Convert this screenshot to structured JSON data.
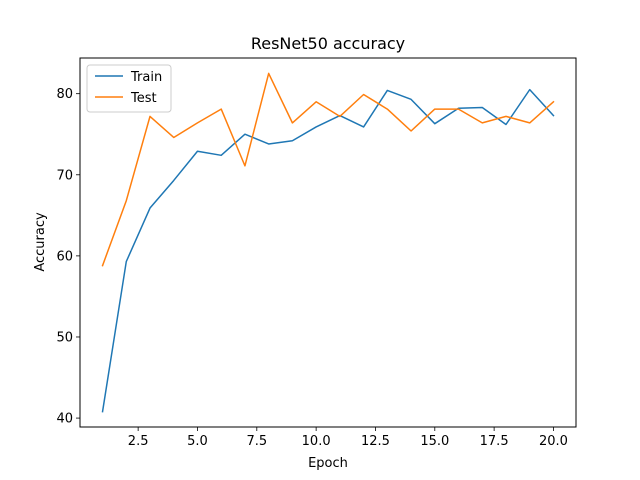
{
  "chart_data": {
    "type": "line",
    "title": "ResNet50 accuracy",
    "xlabel": "Epoch",
    "ylabel": "Accuracy",
    "x": [
      1,
      2,
      3,
      4,
      5,
      6,
      7,
      8,
      9,
      10,
      11,
      12,
      13,
      14,
      15,
      16,
      17,
      18,
      19,
      20
    ],
    "series": [
      {
        "name": "Train",
        "color": "#1f77b4",
        "values": [
          40.8,
          59.3,
          65.9,
          69.3,
          72.9,
          72.4,
          75.0,
          73.8,
          74.2,
          75.9,
          77.3,
          75.9,
          80.4,
          79.3,
          76.3,
          78.2,
          78.3,
          76.2,
          80.5,
          77.3
        ]
      },
      {
        "name": "Test",
        "color": "#ff7f0e",
        "values": [
          58.8,
          66.8,
          77.2,
          74.6,
          76.4,
          78.1,
          71.1,
          82.5,
          76.4,
          79.0,
          77.2,
          79.9,
          78.1,
          75.4,
          78.1,
          78.1,
          76.4,
          77.2,
          76.4,
          79.0
        ]
      }
    ],
    "xlim": [
      0.05,
      20.95
    ],
    "ylim": [
      38.9,
      84.4
    ],
    "xticks": [
      2.5,
      5.0,
      7.5,
      10.0,
      12.5,
      15.0,
      17.5,
      20.0
    ],
    "xtick_labels": [
      "2.5",
      "5.0",
      "7.5",
      "10.0",
      "12.5",
      "15.0",
      "17.5",
      "20.0"
    ],
    "yticks": [
      40,
      50,
      60,
      70,
      80
    ],
    "ytick_labels": [
      "40",
      "50",
      "60",
      "70",
      "80"
    ],
    "grid": false,
    "legend_position": "upper left"
  }
}
